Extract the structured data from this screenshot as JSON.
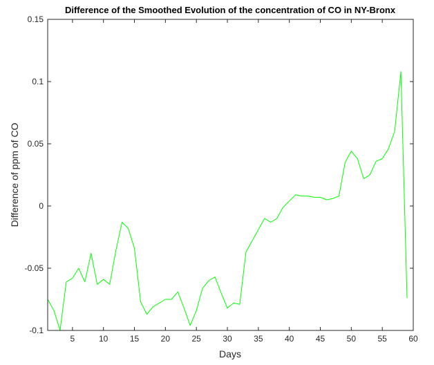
{
  "chart_data": {
    "type": "line",
    "title": "Difference of the Smoothed Evolution of the concentration of CO in NY-Bronx",
    "xlabel": "Days",
    "ylabel": "Difference of ppm of CO",
    "xlim": [
      1,
      60
    ],
    "ylim": [
      -0.1,
      0.15
    ],
    "xticks": [
      5,
      10,
      15,
      20,
      25,
      30,
      35,
      40,
      45,
      50,
      55,
      60
    ],
    "yticks": [
      -0.1,
      -0.05,
      0,
      0.05,
      0.1,
      0.15
    ],
    "ytick_labels": [
      "-0.1",
      "-0.05",
      "0",
      "0.05",
      "0.1",
      "0.15"
    ],
    "grid": false,
    "box": true,
    "series": [
      {
        "color": "#00ff00",
        "x": [
          1,
          2,
          3,
          4,
          5,
          6,
          7,
          8,
          9,
          10,
          11,
          12,
          13,
          14,
          15,
          16,
          17,
          18,
          19,
          20,
          21,
          22,
          23,
          24,
          25,
          26,
          27,
          28,
          29,
          30,
          31,
          32,
          33,
          34,
          35,
          36,
          37,
          38,
          39,
          40,
          41,
          42,
          43,
          44,
          45,
          46,
          47,
          48,
          49,
          50,
          51,
          52,
          53,
          54,
          55,
          56,
          57,
          58,
          59
        ],
        "y": [
          -0.075,
          -0.084,
          -0.1,
          -0.061,
          -0.058,
          -0.05,
          -0.061,
          -0.038,
          -0.063,
          -0.059,
          -0.063,
          -0.036,
          -0.013,
          -0.018,
          -0.034,
          -0.077,
          -0.087,
          -0.081,
          -0.078,
          -0.075,
          -0.075,
          -0.069,
          -0.082,
          -0.096,
          -0.084,
          -0.066,
          -0.06,
          -0.057,
          -0.07,
          -0.082,
          -0.078,
          -0.079,
          -0.037,
          -0.028,
          -0.019,
          -0.01,
          -0.013,
          -0.01,
          -0.001,
          0.004,
          0.009,
          0.008,
          0.008,
          0.007,
          0.007,
          0.005,
          0.006,
          0.008,
          0.035,
          0.044,
          0.038,
          0.022,
          0.025,
          0.036,
          0.038,
          0.046,
          0.06,
          0.108,
          -0.074
        ]
      }
    ]
  }
}
